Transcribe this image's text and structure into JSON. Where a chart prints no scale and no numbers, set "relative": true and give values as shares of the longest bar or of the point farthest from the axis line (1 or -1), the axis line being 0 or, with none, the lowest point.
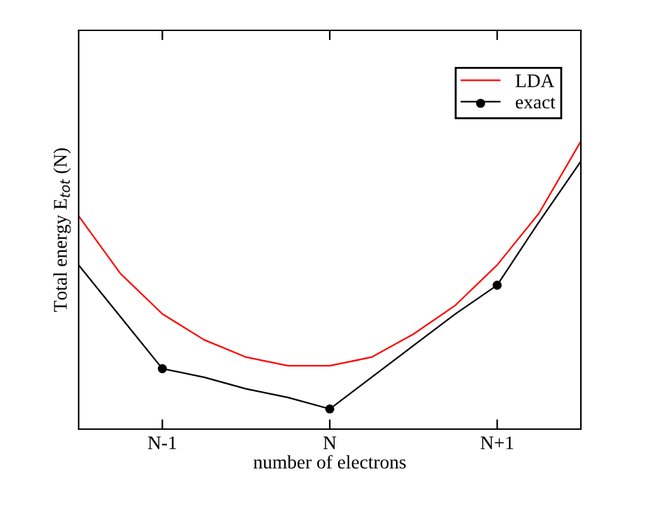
{
  "chart_data": {
    "type": "line",
    "xlabel": "number of electrons",
    "ylabel": "Total energy E$_{tot}$ (N)",
    "relative": true,
    "categories": [
      null,
      null,
      "N-1",
      null,
      null,
      null,
      "N",
      null,
      null,
      null,
      "N+1",
      null,
      null
    ],
    "series": [
      {
        "name": "LDA",
        "color": "#ff0000",
        "marker": "none",
        "values": [
          0.74,
          0.54,
          0.4,
          0.31,
          0.25,
          0.22,
          0.22,
          0.25,
          0.33,
          0.43,
          0.57,
          0.75,
          1.0
        ]
      },
      {
        "color": "#000000",
        "marker": "none",
        "values": [
          0.57,
          0.39,
          0.21,
          0.18,
          0.14,
          0.11,
          0.07,
          0.18,
          0.29,
          0.4,
          0.5,
          0.72,
          0.93
        ]
      },
      {
        "name": "exact",
        "type": "scatter",
        "color": "#000000",
        "marker": "circle",
        "values": [
          null,
          null,
          0.21,
          null,
          null,
          null,
          0.07,
          null,
          null,
          null,
          0.5,
          null,
          null
        ]
      }
    ],
    "legend": "top right",
    "grid": false,
    "line_style": "solid"
  }
}
